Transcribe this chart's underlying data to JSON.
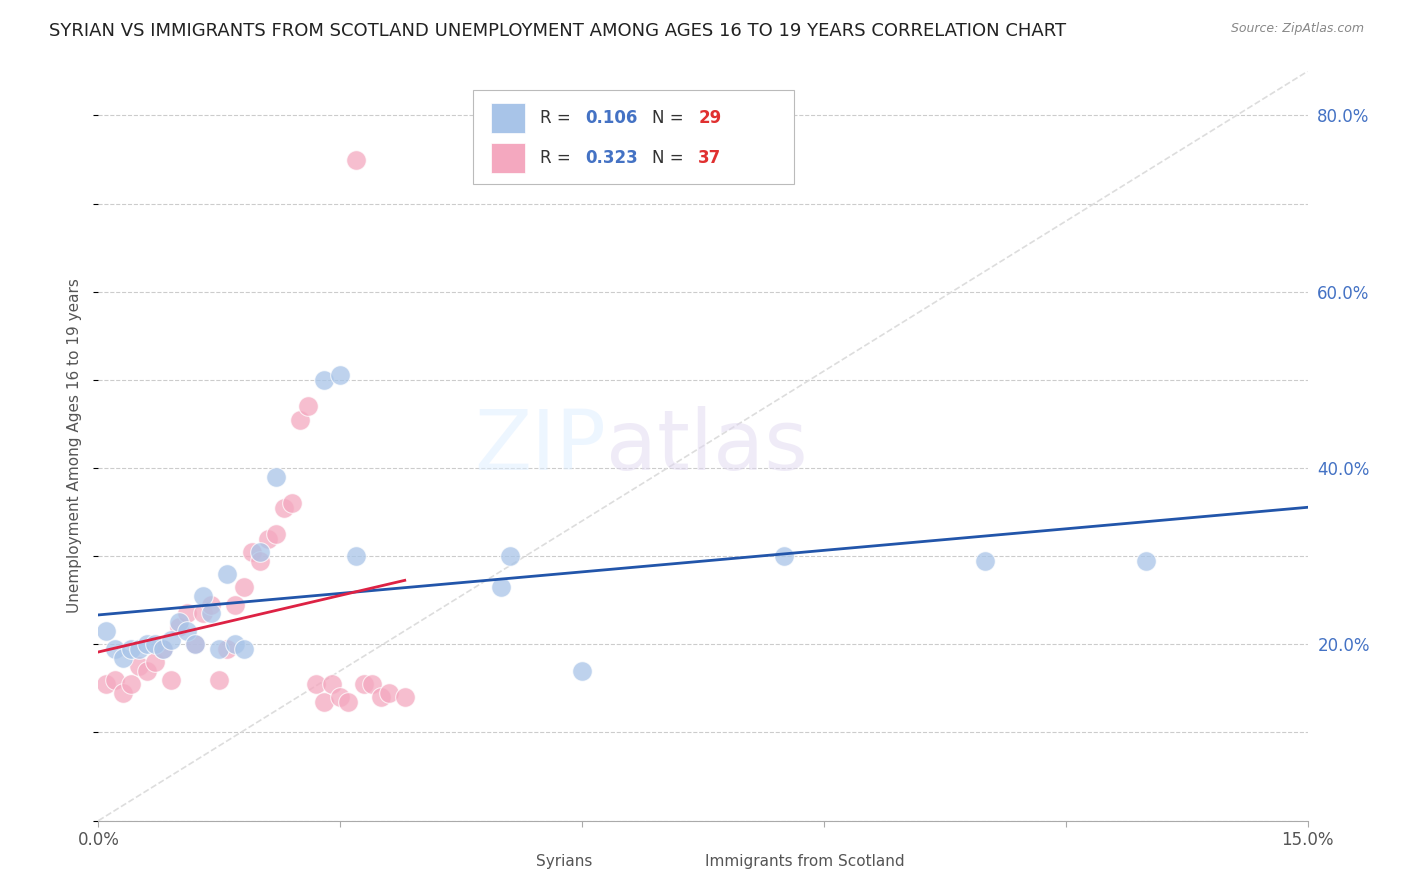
{
  "title": "SYRIAN VS IMMIGRANTS FROM SCOTLAND UNEMPLOYMENT AMONG AGES 16 TO 19 YEARS CORRELATION CHART",
  "source": "Source: ZipAtlas.com",
  "ylabel": "Unemployment Among Ages 16 to 19 years",
  "xlim": [
    0.0,
    0.15
  ],
  "ylim": [
    0.0,
    0.85
  ],
  "xticks": [
    0.0,
    0.03,
    0.06,
    0.09,
    0.12,
    0.15
  ],
  "xtick_labels": [
    "0.0%",
    "",
    "",
    "",
    "",
    "15.0%"
  ],
  "yticks_right": [
    0.0,
    0.2,
    0.4,
    0.6,
    0.8
  ],
  "ytick_right_labels": [
    "",
    "20.0%",
    "40.0%",
    "60.0%",
    "80.0%"
  ],
  "title_fontsize": 13,
  "axis_label_fontsize": 11,
  "tick_fontsize": 12,
  "legend_r1": "0.106",
  "legend_n1": "29",
  "legend_r2": "0.323",
  "legend_n2": "37",
  "syrians_color": "#a8c4e8",
  "scotland_color": "#f4a8bf",
  "trend_blue": "#2255aa",
  "trend_pink": "#dd2244",
  "diagonal_color": "#dddddd",
  "background_color": "#ffffff",
  "syrians_x": [
    0.001,
    0.002,
    0.003,
    0.004,
    0.005,
    0.006,
    0.007,
    0.008,
    0.009,
    0.01,
    0.011,
    0.012,
    0.013,
    0.014,
    0.015,
    0.016,
    0.017,
    0.018,
    0.02,
    0.022,
    0.028,
    0.03,
    0.032,
    0.05,
    0.051,
    0.06,
    0.085,
    0.11,
    0.13
  ],
  "syrians_y": [
    0.215,
    0.195,
    0.185,
    0.195,
    0.195,
    0.2,
    0.2,
    0.195,
    0.205,
    0.225,
    0.215,
    0.2,
    0.255,
    0.235,
    0.195,
    0.28,
    0.2,
    0.195,
    0.305,
    0.39,
    0.5,
    0.505,
    0.3,
    0.265,
    0.3,
    0.17,
    0.3,
    0.295,
    0.295
  ],
  "scotland_x": [
    0.001,
    0.002,
    0.003,
    0.004,
    0.005,
    0.006,
    0.007,
    0.008,
    0.009,
    0.01,
    0.011,
    0.012,
    0.013,
    0.014,
    0.015,
    0.016,
    0.017,
    0.018,
    0.019,
    0.02,
    0.021,
    0.022,
    0.023,
    0.024,
    0.025,
    0.026,
    0.027,
    0.028,
    0.029,
    0.03,
    0.031,
    0.032,
    0.033,
    0.034,
    0.035,
    0.036,
    0.038
  ],
  "scotland_y": [
    0.155,
    0.16,
    0.145,
    0.155,
    0.175,
    0.17,
    0.18,
    0.195,
    0.16,
    0.22,
    0.235,
    0.2,
    0.235,
    0.245,
    0.16,
    0.195,
    0.245,
    0.265,
    0.305,
    0.295,
    0.32,
    0.325,
    0.355,
    0.36,
    0.455,
    0.47,
    0.155,
    0.135,
    0.155,
    0.14,
    0.135,
    0.75,
    0.155,
    0.155,
    0.14,
    0.145,
    0.14
  ]
}
